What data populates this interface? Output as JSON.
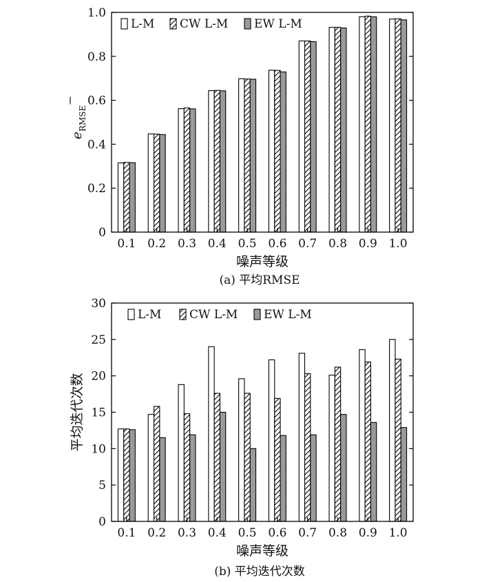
{
  "chart_data": [
    {
      "type": "bar",
      "caption": "(a) 平均RMSE",
      "xlabel": "噪声等级",
      "ylabel_main": "e",
      "ylabel_sub": "RMSE",
      "ylim": [
        0,
        1.0
      ],
      "yticks": [
        "0",
        "0.2",
        "0.4",
        "0.6",
        "0.8",
        "1.0"
      ],
      "ytick_values": [
        0,
        0.2,
        0.4,
        0.6,
        0.8,
        1.0
      ],
      "categories": [
        "0.1",
        "0.2",
        "0.3",
        "0.4",
        "0.5",
        "0.6",
        "0.7",
        "0.8",
        "0.9",
        "1.0"
      ],
      "legend_position": "top-left",
      "series": [
        {
          "name": "L-M",
          "pattern": "white",
          "values": [
            0.315,
            0.447,
            0.562,
            0.644,
            0.698,
            0.737,
            0.87,
            0.932,
            0.98,
            0.97
          ]
        },
        {
          "name": "CW L-M",
          "pattern": "hatch",
          "values": [
            0.317,
            0.446,
            0.565,
            0.645,
            0.697,
            0.736,
            0.87,
            0.932,
            0.983,
            0.971
          ]
        },
        {
          "name": "EW L-M",
          "pattern": "gray",
          "values": [
            0.316,
            0.444,
            0.561,
            0.643,
            0.696,
            0.729,
            0.867,
            0.929,
            0.98,
            0.966
          ]
        }
      ]
    },
    {
      "type": "bar",
      "caption": "(b) 平均迭代次数",
      "xlabel": "噪声等级",
      "ylabel": "平均迭代次数",
      "ylim": [
        0,
        30
      ],
      "yticks": [
        "0",
        "5",
        "10",
        "15",
        "20",
        "25",
        "30"
      ],
      "ytick_values": [
        0,
        5,
        10,
        15,
        20,
        25,
        30
      ],
      "categories": [
        "0.1",
        "0.2",
        "0.3",
        "0.4",
        "0.5",
        "0.6",
        "0.7",
        "0.8",
        "0.9",
        "1.0"
      ],
      "legend_position": "top-center",
      "series": [
        {
          "name": "L-M",
          "pattern": "white",
          "values": [
            12.7,
            14.7,
            18.8,
            24.0,
            19.6,
            22.2,
            23.1,
            20.1,
            23.6,
            25.0
          ]
        },
        {
          "name": "CW L-M",
          "pattern": "hatch",
          "values": [
            12.7,
            15.8,
            14.8,
            17.6,
            17.6,
            16.9,
            20.3,
            21.2,
            21.9,
            22.3
          ]
        },
        {
          "name": "EW L-M",
          "pattern": "gray",
          "values": [
            12.6,
            11.5,
            11.9,
            15.0,
            10.0,
            11.8,
            11.9,
            14.7,
            13.6,
            12.9
          ]
        }
      ]
    }
  ]
}
